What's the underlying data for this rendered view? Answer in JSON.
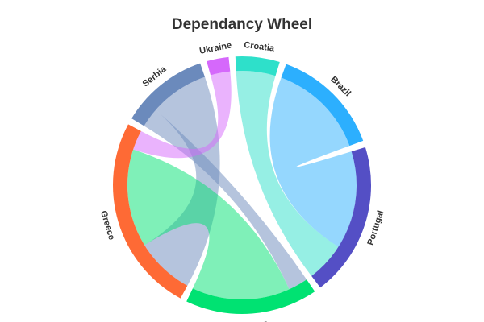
{
  "chart_data": {
    "type": "dependency-wheel",
    "title": "Dependancy Wheel",
    "nodes": [
      {
        "name": "Brazil",
        "color": "#2caffe"
      },
      {
        "name": "Portugal",
        "color": "#544fc5"
      },
      {
        "name": "Cyprus",
        "color": "#00e272"
      },
      {
        "name": "Greece",
        "color": "#fe6a35"
      },
      {
        "name": "Serbia",
        "color": "#6b8abc"
      },
      {
        "name": "Ukraine",
        "color": "#d568fb"
      },
      {
        "name": "Croatia",
        "color": "#2ee0ca"
      }
    ],
    "links": [
      {
        "from": "Brazil",
        "to": "Portugal",
        "weight": 5
      },
      {
        "from": "Croatia",
        "to": "Portugal",
        "weight": 2
      },
      {
        "from": "Serbia",
        "to": "Cyprus",
        "weight": 1
      },
      {
        "from": "Serbia",
        "to": "Greece",
        "weight": 3
      },
      {
        "from": "Cyprus",
        "to": "Greece",
        "weight": 5
      },
      {
        "from": "Ukraine",
        "to": "Greece",
        "weight": 1
      }
    ]
  }
}
